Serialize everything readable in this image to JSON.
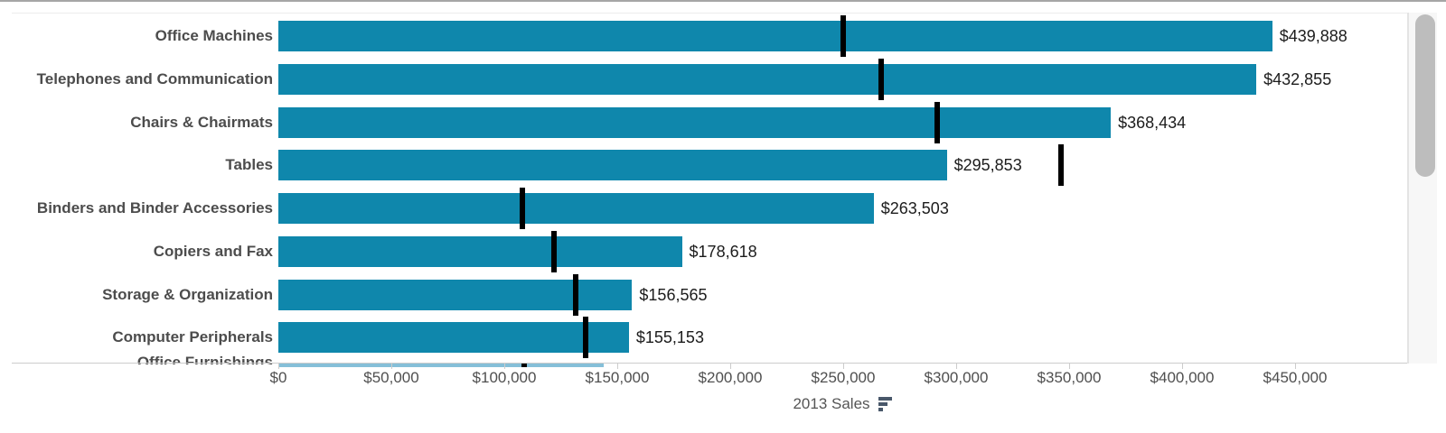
{
  "chart_data": {
    "type": "bar",
    "subtype": "bullet",
    "orientation": "horizontal",
    "title": "",
    "xlabel": "2013 Sales",
    "ylabel": "",
    "xlim": [
      0,
      500000
    ],
    "grid": false,
    "legend": "none",
    "categories": [
      "Office Machines",
      "Telephones and Communication",
      "Chairs & Chairmats",
      "Tables",
      "Binders and Binder Accessories",
      "Copiers and Fax",
      "Storage & Organization",
      "Computer Peripherals",
      "Office Furnishings"
    ],
    "series": [
      {
        "name": "2013 Sales",
        "values": [
          439888,
          432855,
          368434,
          295853,
          263503,
          178618,
          156565,
          155153,
          144000
        ]
      },
      {
        "name": "Reference line",
        "values": [
          250000,
          266800,
          291600,
          346400,
          108000,
          122000,
          131600,
          136000,
          108800
        ]
      }
    ],
    "value_labels": [
      "$439,888",
      "$432,855",
      "$368,434",
      "$295,853",
      "$263,503",
      "$178,618",
      "$156,565",
      "$155,153",
      ""
    ],
    "x_ticks": [
      "$0",
      "$50,000",
      "$100,000",
      "$150,000",
      "$200,000",
      "$250,000",
      "$300,000",
      "$350,000",
      "$400,000",
      "$450,000"
    ],
    "x_tick_values": [
      0,
      50000,
      100000,
      150000,
      200000,
      250000,
      300000,
      350000,
      400000,
      450000
    ],
    "notes": "Last row (Office Furnishings) is clipped by scrolling; its bar and value label are only partially visible."
  },
  "axis": {
    "title": "2013 Sales",
    "sort_icon": "sort-descending-icon"
  },
  "colors": {
    "bar": "#0f87ac",
    "bar_clipped": "#85bfd8",
    "reference_line": "#000000",
    "category_label": "#4c4c4c",
    "value_label": "#1c1c1c",
    "axis_text": "#4f4f4f",
    "axis_line": "#cccccc",
    "sort_icon": "#49586a",
    "scrollbar_thumb": "#bdbdbd"
  }
}
